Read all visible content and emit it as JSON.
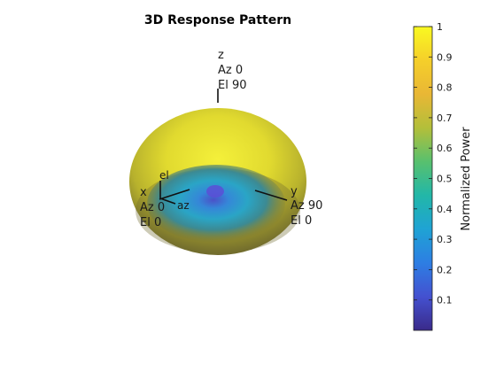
{
  "chart_data": {
    "type": "3d-pattern",
    "title": "3D Response Pattern",
    "surface": {
      "description_values": [
        {
          "region": "outer shell",
          "normalized_power": 1.0
        },
        {
          "region": "null near boresight",
          "normalized_power": 0.25
        }
      ]
    },
    "axis_labels": {
      "z": [
        "z",
        "Az 0",
        "El 90"
      ],
      "x": [
        "x",
        "Az 0",
        "El 0"
      ],
      "y": [
        "y",
        "Az 90",
        "El 0"
      ],
      "el": "el",
      "az": "az"
    },
    "colorbar": {
      "label": "Normalized Power",
      "ticks": [
        "0.1",
        "0.2",
        "0.3",
        "0.4",
        "0.5",
        "0.6",
        "0.7",
        "0.8",
        "0.9",
        "1"
      ],
      "range": [
        0.0,
        1.0
      ],
      "colormap_stops": [
        "#3a2a8a",
        "#4451d0",
        "#2d7ee3",
        "#1fa3d4",
        "#22b7a8",
        "#58c06e",
        "#b3bf3a",
        "#e9b735",
        "#f5cf2a",
        "#f9f921"
      ]
    }
  }
}
